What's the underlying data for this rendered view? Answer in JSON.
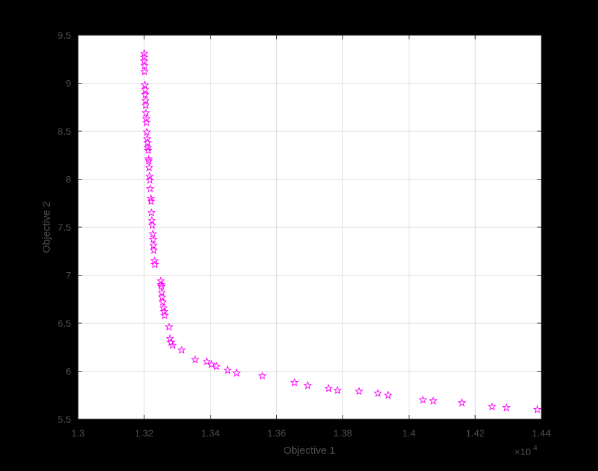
{
  "chart_data": {
    "type": "scatter",
    "title": "",
    "xlabel": "Objective 1",
    "ylabel": "Objective 2",
    "x_exponent_label": "×10",
    "x_exponent_power": "4",
    "xlim": [
      1.3,
      1.44
    ],
    "ylim": [
      5.5,
      9.5
    ],
    "x_tick_labels": [
      "1.3",
      "1.32",
      "1.34",
      "1.36",
      "1.38",
      "1.4",
      "1.42",
      "1.44"
    ],
    "y_tick_labels": [
      "5.5",
      "6",
      "6.5",
      "7",
      "7.5",
      "8",
      "8.5",
      "9",
      "9.5"
    ],
    "grid": true,
    "marker": "star",
    "color": "#ff00ff",
    "background": "#ffffff",
    "figure_background": "#000000",
    "series": [
      {
        "points": [
          [
            1.32,
            9.31
          ],
          [
            1.32,
            9.27
          ],
          [
            1.32,
            9.23
          ],
          [
            1.3201,
            9.18
          ],
          [
            1.3201,
            9.12
          ],
          [
            1.3202,
            8.98
          ],
          [
            1.3203,
            8.93
          ],
          [
            1.3203,
            8.88
          ],
          [
            1.3204,
            8.82
          ],
          [
            1.3204,
            8.77
          ],
          [
            1.3205,
            8.69
          ],
          [
            1.3206,
            8.63
          ],
          [
            1.3207,
            8.59
          ],
          [
            1.3208,
            8.49
          ],
          [
            1.3209,
            8.42
          ],
          [
            1.321,
            8.38
          ],
          [
            1.3211,
            8.33
          ],
          [
            1.3212,
            8.3
          ],
          [
            1.3213,
            8.21
          ],
          [
            1.3214,
            8.19
          ],
          [
            1.3215,
            8.12
          ],
          [
            1.3216,
            8.03
          ],
          [
            1.3217,
            7.99
          ],
          [
            1.3218,
            7.9
          ],
          [
            1.322,
            7.8
          ],
          [
            1.3221,
            7.77
          ],
          [
            1.3222,
            7.65
          ],
          [
            1.3223,
            7.57
          ],
          [
            1.3224,
            7.52
          ],
          [
            1.3226,
            7.43
          ],
          [
            1.3227,
            7.37
          ],
          [
            1.3228,
            7.31
          ],
          [
            1.3229,
            7.26
          ],
          [
            1.3231,
            7.15
          ],
          [
            1.3232,
            7.11
          ],
          [
            1.325,
            6.94
          ],
          [
            1.3251,
            6.9
          ],
          [
            1.3252,
            6.88
          ],
          [
            1.3253,
            6.82
          ],
          [
            1.3254,
            6.77
          ],
          [
            1.3256,
            6.72
          ],
          [
            1.3258,
            6.66
          ],
          [
            1.326,
            6.62
          ],
          [
            1.3262,
            6.58
          ],
          [
            1.3275,
            6.46
          ],
          [
            1.3278,
            6.34
          ],
          [
            1.3281,
            6.3
          ],
          [
            1.3286,
            6.27
          ],
          [
            1.3313,
            6.22
          ],
          [
            1.3354,
            6.12
          ],
          [
            1.3389,
            6.1
          ],
          [
            1.3403,
            6.07
          ],
          [
            1.3418,
            6.05
          ],
          [
            1.3452,
            6.01
          ],
          [
            1.3479,
            5.98
          ],
          [
            1.3557,
            5.95
          ],
          [
            1.3654,
            5.88
          ],
          [
            1.3694,
            5.85
          ],
          [
            1.3757,
            5.82
          ],
          [
            1.3784,
            5.8
          ],
          [
            1.3849,
            5.79
          ],
          [
            1.3906,
            5.77
          ],
          [
            1.3937,
            5.75
          ],
          [
            1.4042,
            5.7
          ],
          [
            1.4073,
            5.69
          ],
          [
            1.416,
            5.67
          ],
          [
            1.4251,
            5.63
          ],
          [
            1.4294,
            5.62
          ],
          [
            1.4388,
            5.6
          ]
        ]
      }
    ]
  }
}
